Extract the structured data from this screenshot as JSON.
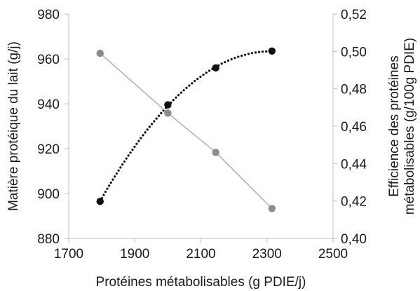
{
  "chart_data": {
    "type": "scatter",
    "x_axis": {
      "label": "Protéines métabolisables (g PDIE/j)",
      "range": [
        1700,
        2500
      ],
      "ticks": [
        "1700",
        "1900",
        "2100",
        "2300",
        "2500"
      ]
    },
    "y_left": {
      "label": "Matière protéique du lait (g/j)",
      "range": [
        880,
        980
      ],
      "ticks": [
        "880",
        "900",
        "920",
        "940",
        "960",
        "980"
      ]
    },
    "y_right": {
      "label_line1": "Efficience des protéines",
      "label_line2": "métabolisables (g/100g PDIE)",
      "range": [
        0.4,
        0.52
      ],
      "ticks": [
        "0,40",
        "0,42",
        "0,44",
        "0,46",
        "0,48",
        "0,50",
        "0,52"
      ]
    },
    "series": [
      {
        "axis": "left",
        "marker_color": "#111111",
        "line": "dotted",
        "trend": "polynomial",
        "x": [
          1795,
          2000,
          2145,
          2315
        ],
        "y": [
          896.5,
          939.5,
          956,
          963.5
        ]
      },
      {
        "axis": "right",
        "marker_color": "#8c8c8c",
        "line": "solid",
        "x": [
          1795,
          2000,
          2145,
          2315
        ],
        "y": [
          0.499,
          0.467,
          0.446,
          0.416
        ]
      }
    ],
    "grid": false,
    "legend": "none"
  }
}
